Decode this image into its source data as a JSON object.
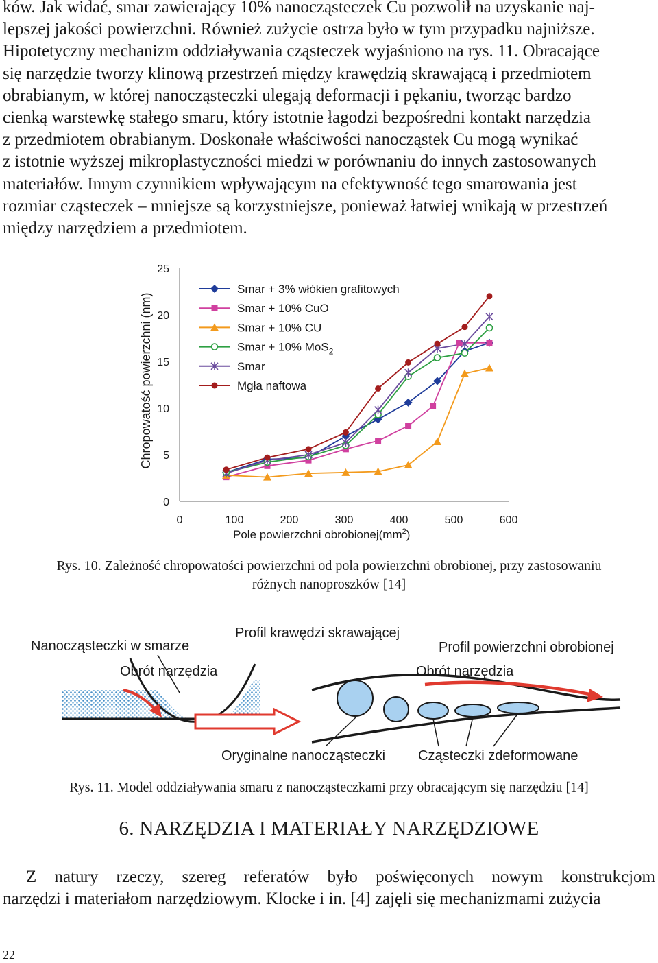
{
  "top_paragraph": {
    "lines": [
      "ków. Jak widać, smar zawierający 10% nanocząsteczek Cu pozwolił na uzyskanie naj-",
      "lepszej jakości powierzchni. Również zużycie ostrza było w tym przypadku najniższe.",
      "Hipotetyczny mechanizm oddziaływania cząsteczek wyjaśniono na rys. 11. Obracające",
      "się narzędzie tworzy klinową przestrzeń między krawędzią skrawającą i przedmiotem",
      "obrabianym, w której nanocząsteczki ulegają deformacji i pękaniu, tworząc bardzo",
      "cienką warstewkę stałego smaru, który istotnie łagodzi bezpośredni kontakt narzędzia",
      "z przedmiotem obrabianym. Doskonałe właściwości nanocząstek Cu mogą wynikać",
      "z istotnie wyższej mikroplastyczności miedzi w porównaniu do innych zastosowanych",
      "materiałów. Innym czynnikiem wpływającym na efektywność tego smarowania jest",
      "rozmiar cząsteczek – mniejsze są korzystniejsze, ponieważ łatwiej wnikają w przestrzeń",
      "między narzędziem a przedmiotem."
    ]
  },
  "figure10": {
    "caption_line1": "Rys. 10. Zależność chropowatości powierzchni od pola powierzchni obrobionej, przy zastosowaniu",
    "caption_line2": "różnych nanoproszków [14]"
  },
  "chart_data": {
    "type": "line",
    "xlabel": "Pole powierzchni obrobionej(mm2)",
    "ylabel": "Chropowatość powierzchni (nm)",
    "xlim": [
      0,
      600
    ],
    "ylim": [
      0,
      25
    ],
    "xticks": [
      "0",
      "100",
      "200",
      "300",
      "400",
      "500",
      "600"
    ],
    "yticks": [
      "0",
      "5",
      "10",
      "15",
      "20",
      "25"
    ],
    "grid": false,
    "legend_position": "top-left",
    "series": [
      {
        "name": "Smar +  3% włókien grafitowych",
        "color": "#1f3c9a",
        "marker": "diamond",
        "x": [
          85,
          160,
          235,
          303,
          362,
          417,
          470,
          520,
          565
        ],
        "y": [
          3.1,
          4.5,
          4.7,
          7.0,
          8.8,
          10.6,
          12.9,
          16.1,
          17.0
        ]
      },
      {
        "name": "Smar + 10% CuO",
        "color": "#d0409f",
        "marker": "square",
        "x": [
          85,
          160,
          235,
          303,
          362,
          417,
          462,
          510,
          565
        ],
        "y": [
          2.6,
          3.8,
          4.4,
          5.6,
          6.5,
          8.1,
          10.2,
          17.0,
          17.0
        ]
      },
      {
        "name": "Smar + 10% CU",
        "color": "#f39a1c",
        "marker": "triangle",
        "x": [
          85,
          160,
          235,
          303,
          362,
          417,
          470,
          520,
          565
        ],
        "y": [
          2.8,
          2.6,
          3.0,
          3.1,
          3.2,
          3.9,
          6.4,
          13.7,
          14.3
        ]
      },
      {
        "name": "Smar + 10% MoS2",
        "color": "#2ea043",
        "marker": "circle",
        "x": [
          85,
          160,
          235,
          303,
          362,
          417,
          470,
          520,
          565
        ],
        "y": [
          3.1,
          4.2,
          4.8,
          6.0,
          9.3,
          13.4,
          15.4,
          15.9,
          18.6
        ]
      },
      {
        "name": "Smar",
        "color": "#6a4b9d",
        "marker": "star",
        "x": [
          85,
          160,
          235,
          303,
          362,
          417,
          470,
          520,
          565
        ],
        "y": [
          3.0,
          4.4,
          5.0,
          6.3,
          9.8,
          13.8,
          16.4,
          16.9,
          19.8
        ]
      },
      {
        "name": "Mgła naftowa",
        "color": "#a31d1d",
        "marker": "dot",
        "x": [
          85,
          160,
          235,
          303,
          362,
          417,
          470,
          520,
          565
        ],
        "y": [
          3.4,
          4.7,
          5.6,
          7.4,
          12.1,
          14.9,
          16.9,
          18.7,
          22.0
        ]
      }
    ]
  },
  "figure11": {
    "label_nanoparticles": "Nanocząsteczki w smarze",
    "label_tool_rotation_left": "Obrót narzędzia",
    "label_edge_profile": "Profil krawędzi skrawającej",
    "label_surface_profile": "Profil powierzchni obrobionej",
    "label_tool_rotation_right": "Obrót narzędzia",
    "label_original": "Oryginalne nanocząsteczki",
    "label_deformed": "Cząsteczki zdeformowane",
    "caption": "Rys. 11. Model oddziaływania smaru z nanocząsteczkami przy obracającym się narzędziu [14]"
  },
  "section": {
    "heading": "6. NARZĘDZIA I MATERIAŁY NARZĘDZIOWE",
    "lines": [
      "Z natury rzeczy, szereg referatów było poświęconych nowym konstrukcjom",
      "narzędzi i materiałom narzędziowym. Klocke i in. [4] zajęli się mechanizmami zużycia"
    ]
  },
  "page_number": "22"
}
